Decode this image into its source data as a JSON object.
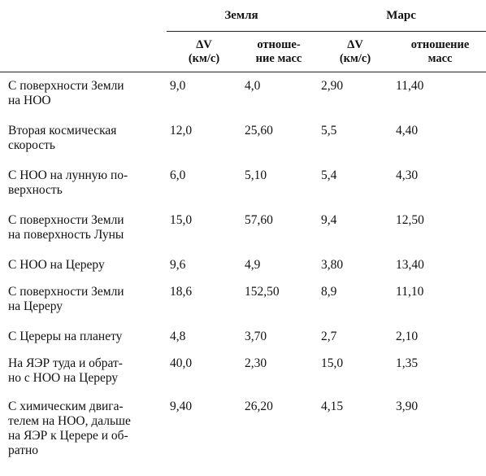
{
  "table": {
    "group_headers": {
      "earth": "Земля",
      "mars": "Марс"
    },
    "sub_headers": {
      "earth_dv": [
        "ΔV",
        "(км/с)"
      ],
      "earth_ratio": [
        "отноше-",
        "ние масс"
      ],
      "mars_dv": [
        "ΔV",
        "(км/с)"
      ],
      "mars_ratio": [
        "отношение",
        "масс"
      ]
    },
    "rows": [
      {
        "name": [
          "С поверхности Земли",
          "на НОО"
        ],
        "earth_dv": "9,0",
        "earth_ratio": "4,0",
        "mars_dv": "2,90",
        "mars_ratio": "11,40"
      },
      {
        "name": [
          "Вторая космическая",
          "скорость"
        ],
        "earth_dv": "12,0",
        "earth_ratio": "25,60",
        "mars_dv": "5,5",
        "mars_ratio": "4,40"
      },
      {
        "name": [
          "С НОО на лунную по-",
          "верхность"
        ],
        "earth_dv": "6,0",
        "earth_ratio": "5,10",
        "mars_dv": "5,4",
        "mars_ratio": "4,30"
      },
      {
        "name": [
          "С поверхности Земли",
          "на поверхность Луны"
        ],
        "earth_dv": "15,0",
        "earth_ratio": "57,60",
        "mars_dv": "9,4",
        "mars_ratio": "12,50"
      },
      {
        "name": [
          "С НОО на Цереру"
        ],
        "earth_dv": "9,6",
        "earth_ratio": "4,9",
        "mars_dv": "3,80",
        "mars_ratio": "13,40"
      },
      {
        "name": [
          "С поверхности Земли",
          "на Цереру"
        ],
        "earth_dv": "18,6",
        "earth_ratio": "152,50",
        "mars_dv": "8,9",
        "mars_ratio": "11,10"
      },
      {
        "name": [
          "С Цереры на планету"
        ],
        "earth_dv": "4,8",
        "earth_ratio": "3,70",
        "mars_dv": "2,7",
        "mars_ratio": "2,10"
      },
      {
        "name": [
          "На ЯЭР туда и обрат-",
          "но с НОО на Цереру"
        ],
        "earth_dv": "40,0",
        "earth_ratio": "2,30",
        "mars_dv": "15,0",
        "mars_ratio": "1,35"
      },
      {
        "name": [
          "С химическим двига-",
          "телем на НОО, дальше",
          "на ЯЭР к Церере и об-",
          "ратно"
        ],
        "earth_dv": "9,40",
        "earth_ratio": "26,20",
        "mars_dv": "4,15",
        "mars_ratio": "3,90"
      }
    ]
  }
}
